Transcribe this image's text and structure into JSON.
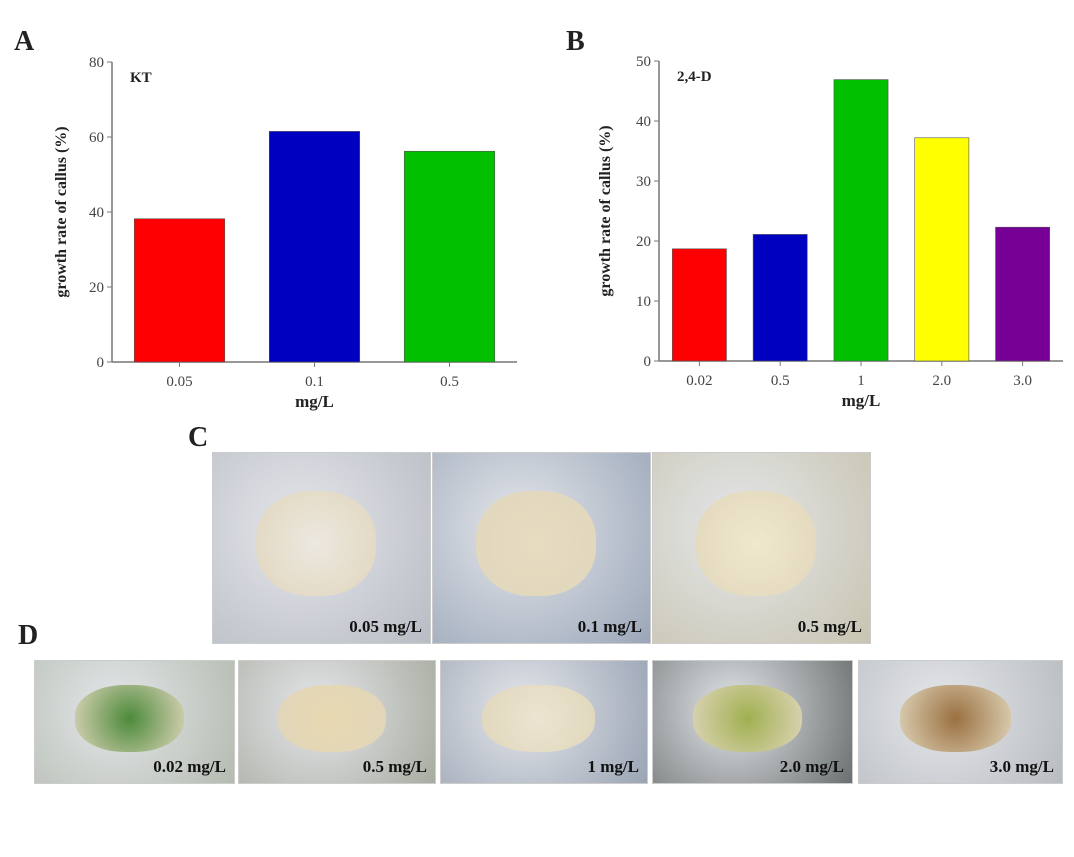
{
  "panels": {
    "a": "A",
    "b": "B",
    "c": "C",
    "d": "D"
  },
  "chart_data": [
    {
      "type": "bar",
      "title": "KT",
      "xlabel": "mg/L",
      "ylabel": "growth rate of callus (%)",
      "categories": [
        "0.05",
        "0.1",
        "0.5"
      ],
      "values": [
        38.2,
        61.5,
        56.2
      ],
      "colors": [
        "#ff0000",
        "#0000c0",
        "#00c000"
      ],
      "ylim": [
        0,
        80
      ],
      "yticks": [
        0,
        20,
        40,
        60,
        80
      ],
      "grid": false
    },
    {
      "type": "bar",
      "title": "2,4-D",
      "xlabel": "mg/L",
      "ylabel": "growth rate of callus (%)",
      "categories": [
        "0.02",
        "0.5",
        "1",
        "2.0",
        "3.0"
      ],
      "values": [
        18.7,
        21.1,
        46.9,
        37.2,
        22.3
      ],
      "colors": [
        "#ff0000",
        "#0000c0",
        "#00c000",
        "#ffff00",
        "#760096"
      ],
      "ylim": [
        0,
        50
      ],
      "yticks": [
        0,
        10,
        20,
        30,
        40,
        50
      ],
      "grid": false
    }
  ],
  "photos_c": [
    {
      "label": "0.05 mg/L",
      "tone": "#b8bcc4",
      "blob": "#ece8e0"
    },
    {
      "label": "0.1 mg/L",
      "tone": "#9aa6b8",
      "blob": "#e6dcc0"
    },
    {
      "label": "0.5 mg/L",
      "tone": "#c8c4b0",
      "blob": "#f0e8cc"
    }
  ],
  "photos_d": [
    {
      "label": "0.02 mg/L",
      "tone": "#b4bcb0",
      "blob": "#4c8a3a"
    },
    {
      "label": "0.5 mg/L",
      "tone": "#a8aca0",
      "blob": "#e8d8b0"
    },
    {
      "label": "1 mg/L",
      "tone": "#9aa4b4",
      "blob": "#ece4d0"
    },
    {
      "label": "2.0 mg/L",
      "tone": "#6a7070",
      "blob": "#a0b050"
    },
    {
      "label": "3.0 mg/L",
      "tone": "#b8bcc0",
      "blob": "#9a7040"
    }
  ]
}
